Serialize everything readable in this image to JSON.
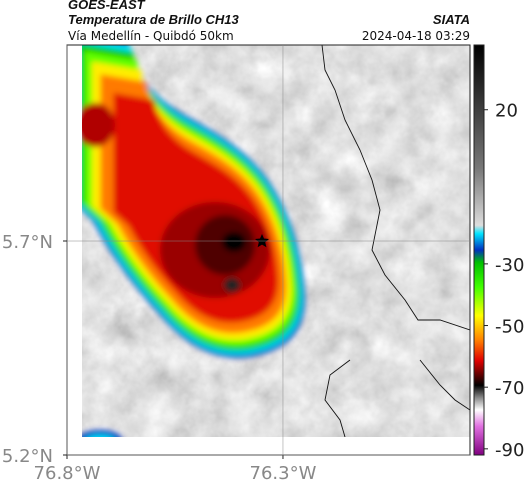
{
  "header": {
    "satellite": "GOES-EAST",
    "product": "Temperatura de Brillo CH13",
    "source": "SIATA",
    "location": "Vía Medellín - Quibdó 50km",
    "datetime": "2024-04-18 03:29"
  },
  "map": {
    "xlim": [
      -76.8,
      -75.867
    ],
    "ylim": [
      5.2,
      6.158
    ],
    "xticks": [
      {
        "value": -76.8,
        "label": "76.8°W"
      },
      {
        "value": -76.3,
        "label": "76.3°W"
      }
    ],
    "yticks": [
      {
        "value": 5.7,
        "label": "5.7°N"
      },
      {
        "value": 5.2,
        "label": "5.2°N"
      }
    ]
  },
  "colorbar": {
    "lim": [
      -92,
      41
    ],
    "ticks": [
      20,
      -30,
      -50,
      -70,
      -90
    ]
  }
}
